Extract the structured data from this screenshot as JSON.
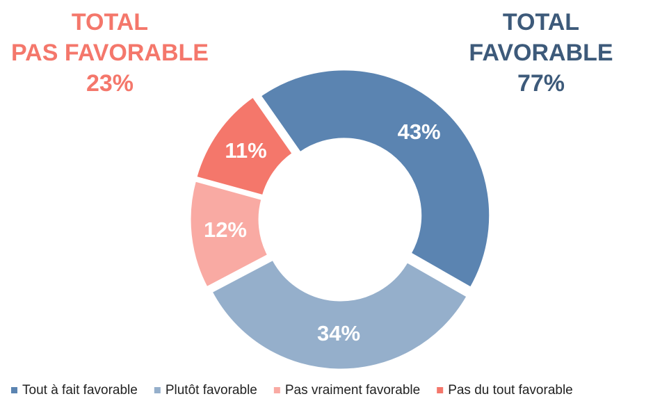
{
  "chart_data": {
    "type": "donut",
    "categories": [
      "Tout à fait favorable",
      "Plutôt favorable",
      "Pas vraiment favorable",
      "Pas du tout favorable"
    ],
    "values": [
      43,
      34,
      12,
      11
    ],
    "value_labels": [
      "43%",
      "34%",
      "12%",
      "11%"
    ],
    "colors": [
      "#5b84b1",
      "#95afcb",
      "#f9aaa3",
      "#f4776b"
    ],
    "annotations": [
      {
        "lines": [
          "TOTAL",
          "PAS FAVORABLE"
        ],
        "value": 23,
        "label": "23%",
        "color": "#f4776b"
      },
      {
        "lines": [
          "TOTAL",
          "FAVORABLE"
        ],
        "value": 77,
        "label": "77%",
        "color": "#3d5a7a"
      }
    ],
    "legend": "bottom"
  }
}
